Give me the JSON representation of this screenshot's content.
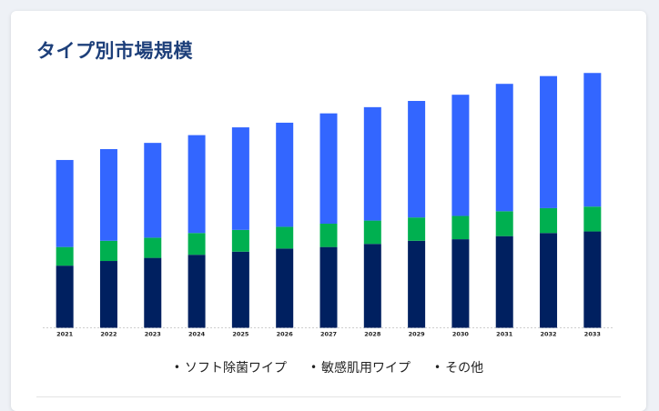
{
  "title": "タイプ別市場規模",
  "chart_data": {
    "type": "bar",
    "stacked": true,
    "categories": [
      "2021",
      "2022",
      "2023",
      "2024",
      "2025",
      "2026",
      "2027",
      "2028",
      "2029",
      "2030",
      "2031",
      "2032",
      "2033"
    ],
    "series": [
      {
        "name": "その他",
        "color": "#002060",
        "values": [
          4.0,
          4.3,
          4.5,
          4.7,
          4.9,
          5.1,
          5.2,
          5.4,
          5.6,
          5.7,
          5.9,
          6.1,
          6.2
        ]
      },
      {
        "name": "敏感肌用ワイプ",
        "color": "#00b050",
        "values": [
          1.2,
          1.3,
          1.3,
          1.4,
          1.4,
          1.4,
          1.5,
          1.5,
          1.5,
          1.5,
          1.6,
          1.6,
          1.6
        ]
      },
      {
        "name": "ソフト除菌ワイプ",
        "color": "#3366ff",
        "values": [
          5.6,
          5.9,
          6.1,
          6.3,
          6.6,
          6.7,
          7.1,
          7.3,
          7.5,
          7.8,
          8.2,
          8.5,
          8.6
        ]
      }
    ],
    "legend": [
      "ソフト除菌ワイプ",
      "敏感肌用ワイプ",
      "その他"
    ],
    "legend_position": "bottom",
    "grid": false,
    "ylim": [
      0,
      17
    ]
  }
}
